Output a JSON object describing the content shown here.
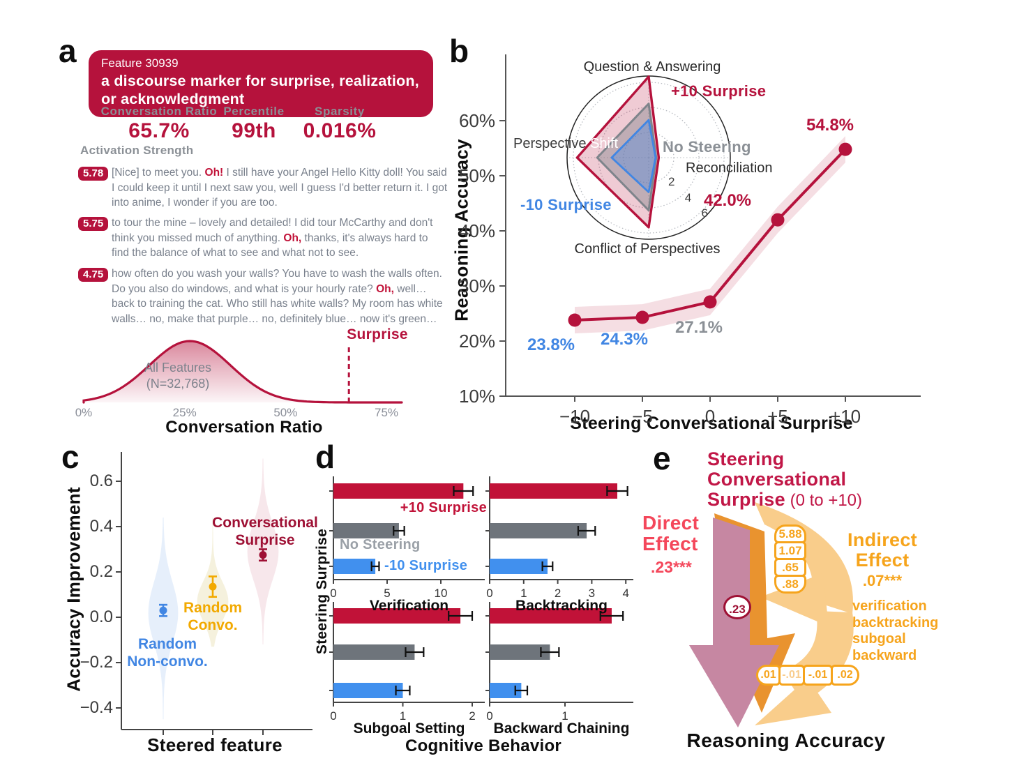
{
  "colors": {
    "crimson": "#B5123C",
    "crimson_dark": "#9E1034",
    "bar_red": "#C11238",
    "rose": "#F4475B",
    "blue": "#4186E3",
    "bar_blue": "#4190EE",
    "yellow": "#F2A900",
    "olive_fill": "#C8B040",
    "gray_bar": "#6E747B",
    "gray_text": "#8B9096",
    "radar_gray": "#7E848B",
    "quote_gray": "#79808C",
    "orange": "#F6A41C",
    "orange_light": "#F9CD8B",
    "orange_mid": "#E9932F",
    "mauve": "#C687A2",
    "ink": "#141414",
    "tick": "#3C3C3C",
    "muted_cell": "#F8CD8E"
  },
  "panels": {
    "a": {
      "label": "a",
      "feature_id": "Feature 30939",
      "feature_desc": "a discourse marker for surprise, realization, or acknowledgment",
      "stats": [
        {
          "label": "Conversation Ratio",
          "value": "65.7%"
        },
        {
          "label": "Percentile",
          "value": "99th"
        },
        {
          "label": "Sparsity",
          "value": "0.016%"
        }
      ],
      "activation_title": "Activation Strength",
      "examples": [
        {
          "score": "5.78",
          "segments": [
            {
              "t": "[Nice] to meet you. "
            },
            {
              "t": "Oh!",
              "hl": true
            },
            {
              "t": " I still have your Angel Hello Kitty doll! You said I could keep it until I next saw you, well I guess I'd better return it. I got into anime, I wonder if you are too."
            }
          ]
        },
        {
          "score": "5.75",
          "segments": [
            {
              "t": "to tour the mine – lovely and detailed! I did tour McCarthy and don't think you missed much of anything. "
            },
            {
              "t": "Oh,",
              "hl": true
            },
            {
              "t": " thanks, it's always hard to find the balance of what to see and what not to see."
            }
          ]
        },
        {
          "score": "4.75",
          "segments": [
            {
              "t": "how often do you wash your walls? You have to wash the walls often. Do you also do windows, and what is your hourly rate? "
            },
            {
              "t": "Oh,",
              "hl": true
            },
            {
              "t": " well… back to training the cat. Who still has white walls? My room has white walls… no, make that purple… no, definitely blue… now it's green…"
            }
          ]
        }
      ]
    },
    "b": {
      "label": "b"
    },
    "c": {
      "label": "c"
    },
    "d": {
      "label": "d"
    },
    "e": {
      "label": "e",
      "title_line1": "Steering",
      "title_line2": "Conversational",
      "title_line3_bold": "Surprise",
      "title_line3_rest": "(0 to +10)",
      "direct_line1": "Direct",
      "direct_line2": "Effect",
      "direct_value": ".23***",
      "path_value": ".23",
      "stack_values": [
        "5.88",
        "1.07",
        ".65",
        ".88"
      ],
      "indirect_line1": "Indirect",
      "indirect_line2": "Effect",
      "indirect_value": ".07***",
      "mediators": [
        "verification",
        "backtracking",
        "subgoal",
        "backward"
      ],
      "bottom_values": [
        ".01",
        "-.01",
        "-.01",
        ".02"
      ],
      "bottom_muted_index": 1,
      "outcome": "Reasoning Accuracy"
    }
  },
  "chart_data": [
    {
      "id": "conversation-ratio-distribution",
      "type": "area",
      "xlabel": "Conversation Ratio",
      "xticks": [
        {
          "pct": 0,
          "label": "0%"
        },
        {
          "pct": 25,
          "label": "25%"
        },
        {
          "pct": 50,
          "label": "50%"
        },
        {
          "pct": 75,
          "label": "75%"
        }
      ],
      "annotation_lines": [
        "All Features",
        "(N=32,768)"
      ],
      "peak_pct": 26.3,
      "xlim_pct": [
        0,
        79
      ],
      "marker": {
        "label": "Surprise",
        "x_pct": 65.7
      }
    },
    {
      "id": "reasoning-accuracy-line",
      "type": "line",
      "xlabel": "Steering Conversational Surprise",
      "ylabel": "Reasoning Accuracy",
      "x": [
        -10,
        -5,
        0,
        5,
        10
      ],
      "xtick_labels": [
        "−10",
        "−5",
        "0",
        "+5",
        "+10"
      ],
      "y": [
        23.8,
        24.3,
        27.1,
        42.0,
        54.8
      ],
      "point_labels": [
        "23.8%",
        "24.3%",
        "27.1%",
        "42.0%",
        "54.8%"
      ],
      "point_label_colors": [
        "blue",
        "blue",
        "gray_text",
        "crimson",
        "crimson"
      ],
      "yticks": [
        {
          "v": 10,
          "label": "10%"
        },
        {
          "v": 20,
          "label": "20%"
        },
        {
          "v": 30,
          "label": "30%"
        },
        {
          "v": 40,
          "label": "40%"
        },
        {
          "v": 50,
          "label": "50%"
        },
        {
          "v": 60,
          "label": "60%"
        }
      ],
      "ylim": [
        10,
        65
      ],
      "band_halfwidth": 2.4,
      "grid": false,
      "line_color": "crimson"
    },
    {
      "id": "cognitive-behavior-radar",
      "type": "radar",
      "axes": [
        "Question & Answering",
        "Reconciliation",
        "Conflict of Perspectives",
        "Perspective Shift"
      ],
      "rings": [
        2,
        4,
        6
      ],
      "series": [
        {
          "name": "+10 Surprise",
          "color": "crimson",
          "values": [
            6.45,
            0.8,
            5.55,
            5.7
          ]
        },
        {
          "name": "No Steering",
          "color": "radar_gray",
          "values": [
            4.3,
            0.6,
            4.2,
            4.1
          ]
        },
        {
          "name": "-10 Surprise",
          "color": "blue",
          "values": [
            3.0,
            0.55,
            2.75,
            2.95
          ]
        }
      ]
    },
    {
      "id": "accuracy-improvement-violin",
      "type": "violin",
      "ylabel": "Accuracy Improvement",
      "xlabel": "Steered feature",
      "yticks": [
        {
          "v": 0.6,
          "label": "0.6"
        },
        {
          "v": 0.4,
          "label": "0.4"
        },
        {
          "v": 0.2,
          "label": "0.2"
        },
        {
          "v": 0.0,
          "label": "0.0"
        },
        {
          "v": -0.2,
          "label": "−0.2"
        },
        {
          "v": -0.4,
          "label": "−0.4"
        }
      ],
      "groups": [
        {
          "name_lines": [
            "Random",
            "Non-convo."
          ],
          "color": "blue",
          "fill": "blue",
          "mean": 0.03,
          "err": 0.025,
          "min": -0.45,
          "max": 0.44,
          "mode": 0.02
        },
        {
          "name_lines": [
            "Random",
            "Convo."
          ],
          "color": "yellow",
          "fill": "olive_fill",
          "mean": 0.135,
          "err": 0.045,
          "min": -0.13,
          "max": 0.44,
          "mode": 0.07
        },
        {
          "name_lines": [
            "Conversational",
            "Surprise"
          ],
          "color": "crimson_dark",
          "fill": "crimson",
          "mean": 0.275,
          "err": 0.025,
          "min": -0.12,
          "max": 0.7,
          "mode": 0.29
        }
      ]
    },
    {
      "id": "cognitive-behavior-bars",
      "type": "bar",
      "ylabel": "Steering Surprise",
      "xlabel": "Cognitive Behavior",
      "series": [
        {
          "name": "+10 Surprise",
          "color": "bar_red"
        },
        {
          "name": "No Steering",
          "color": "gray_bar"
        },
        {
          "name": "-10 Surprise",
          "color": "bar_blue"
        }
      ],
      "subplots": [
        {
          "title": "Verification",
          "xticks": [
            {
              "v": 0,
              "l": "0"
            },
            {
              "v": 5,
              "l": "5"
            },
            {
              "v": 10,
              "l": "10"
            }
          ],
          "values": [
            12.1,
            6.1,
            3.9
          ],
          "errors": [
            0.9,
            0.5,
            0.35
          ]
        },
        {
          "title": "Backtracking",
          "xticks": [
            {
              "v": 0,
              "l": "0"
            },
            {
              "v": 1,
              "l": "1"
            },
            {
              "v": 2,
              "l": "2"
            },
            {
              "v": 3,
              "l": "3"
            },
            {
              "v": 4,
              "l": "4"
            }
          ],
          "values": [
            3.75,
            2.85,
            1.7
          ],
          "errors": [
            0.3,
            0.25,
            0.15
          ]
        },
        {
          "title": "Subgoal Setting",
          "xticks": [
            {
              "v": 0,
              "l": "0"
            },
            {
              "v": 1,
              "l": "1"
            },
            {
              "v": 2,
              "l": "2"
            }
          ],
          "values": [
            1.83,
            1.17,
            1.0
          ],
          "errors": [
            0.17,
            0.13,
            0.1
          ]
        },
        {
          "title": "Backward Chaining",
          "xticks": [
            {
              "v": 0,
              "l": "0"
            },
            {
              "v": 1,
              "l": "1"
            }
          ],
          "values": [
            1.62,
            0.8,
            0.42
          ],
          "errors": [
            0.15,
            0.12,
            0.08
          ]
        }
      ]
    }
  ]
}
